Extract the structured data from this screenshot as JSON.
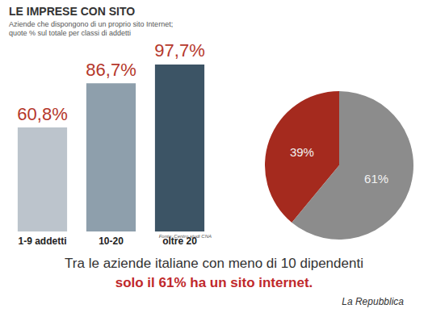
{
  "chart_data": [
    {
      "type": "bar",
      "title": "LE IMPRESE CON SITO",
      "subtitle": "Aziende che dispongono di un proprio sito Internet;\nquote % sul totale per classi di addetti",
      "categories": [
        "1-9 addetti",
        "10-20",
        "oltre 20"
      ],
      "values": [
        60.8,
        86.7,
        97.7
      ],
      "value_labels": [
        "60,8%",
        "86,7%",
        "97,7%"
      ],
      "colors": [
        "#bcc4cc",
        "#8e9fac",
        "#3c5465"
      ],
      "data_labels": true,
      "tick_labels": "x",
      "source": "Fonte: Centro studi CNA"
    },
    {
      "type": "pie",
      "categories": [
        null,
        null
      ],
      "values": [
        39,
        61
      ],
      "value_labels": [
        "39%",
        "61%"
      ],
      "colors": [
        "#a52a1e",
        "#8c8c8c"
      ],
      "data_labels": true
    }
  ],
  "caption": {
    "line1": "Tra le aziende italiane con meno di 10 dipendenti",
    "line2": "solo il 61% ha un sito internet.",
    "source": "La Repubblica"
  }
}
